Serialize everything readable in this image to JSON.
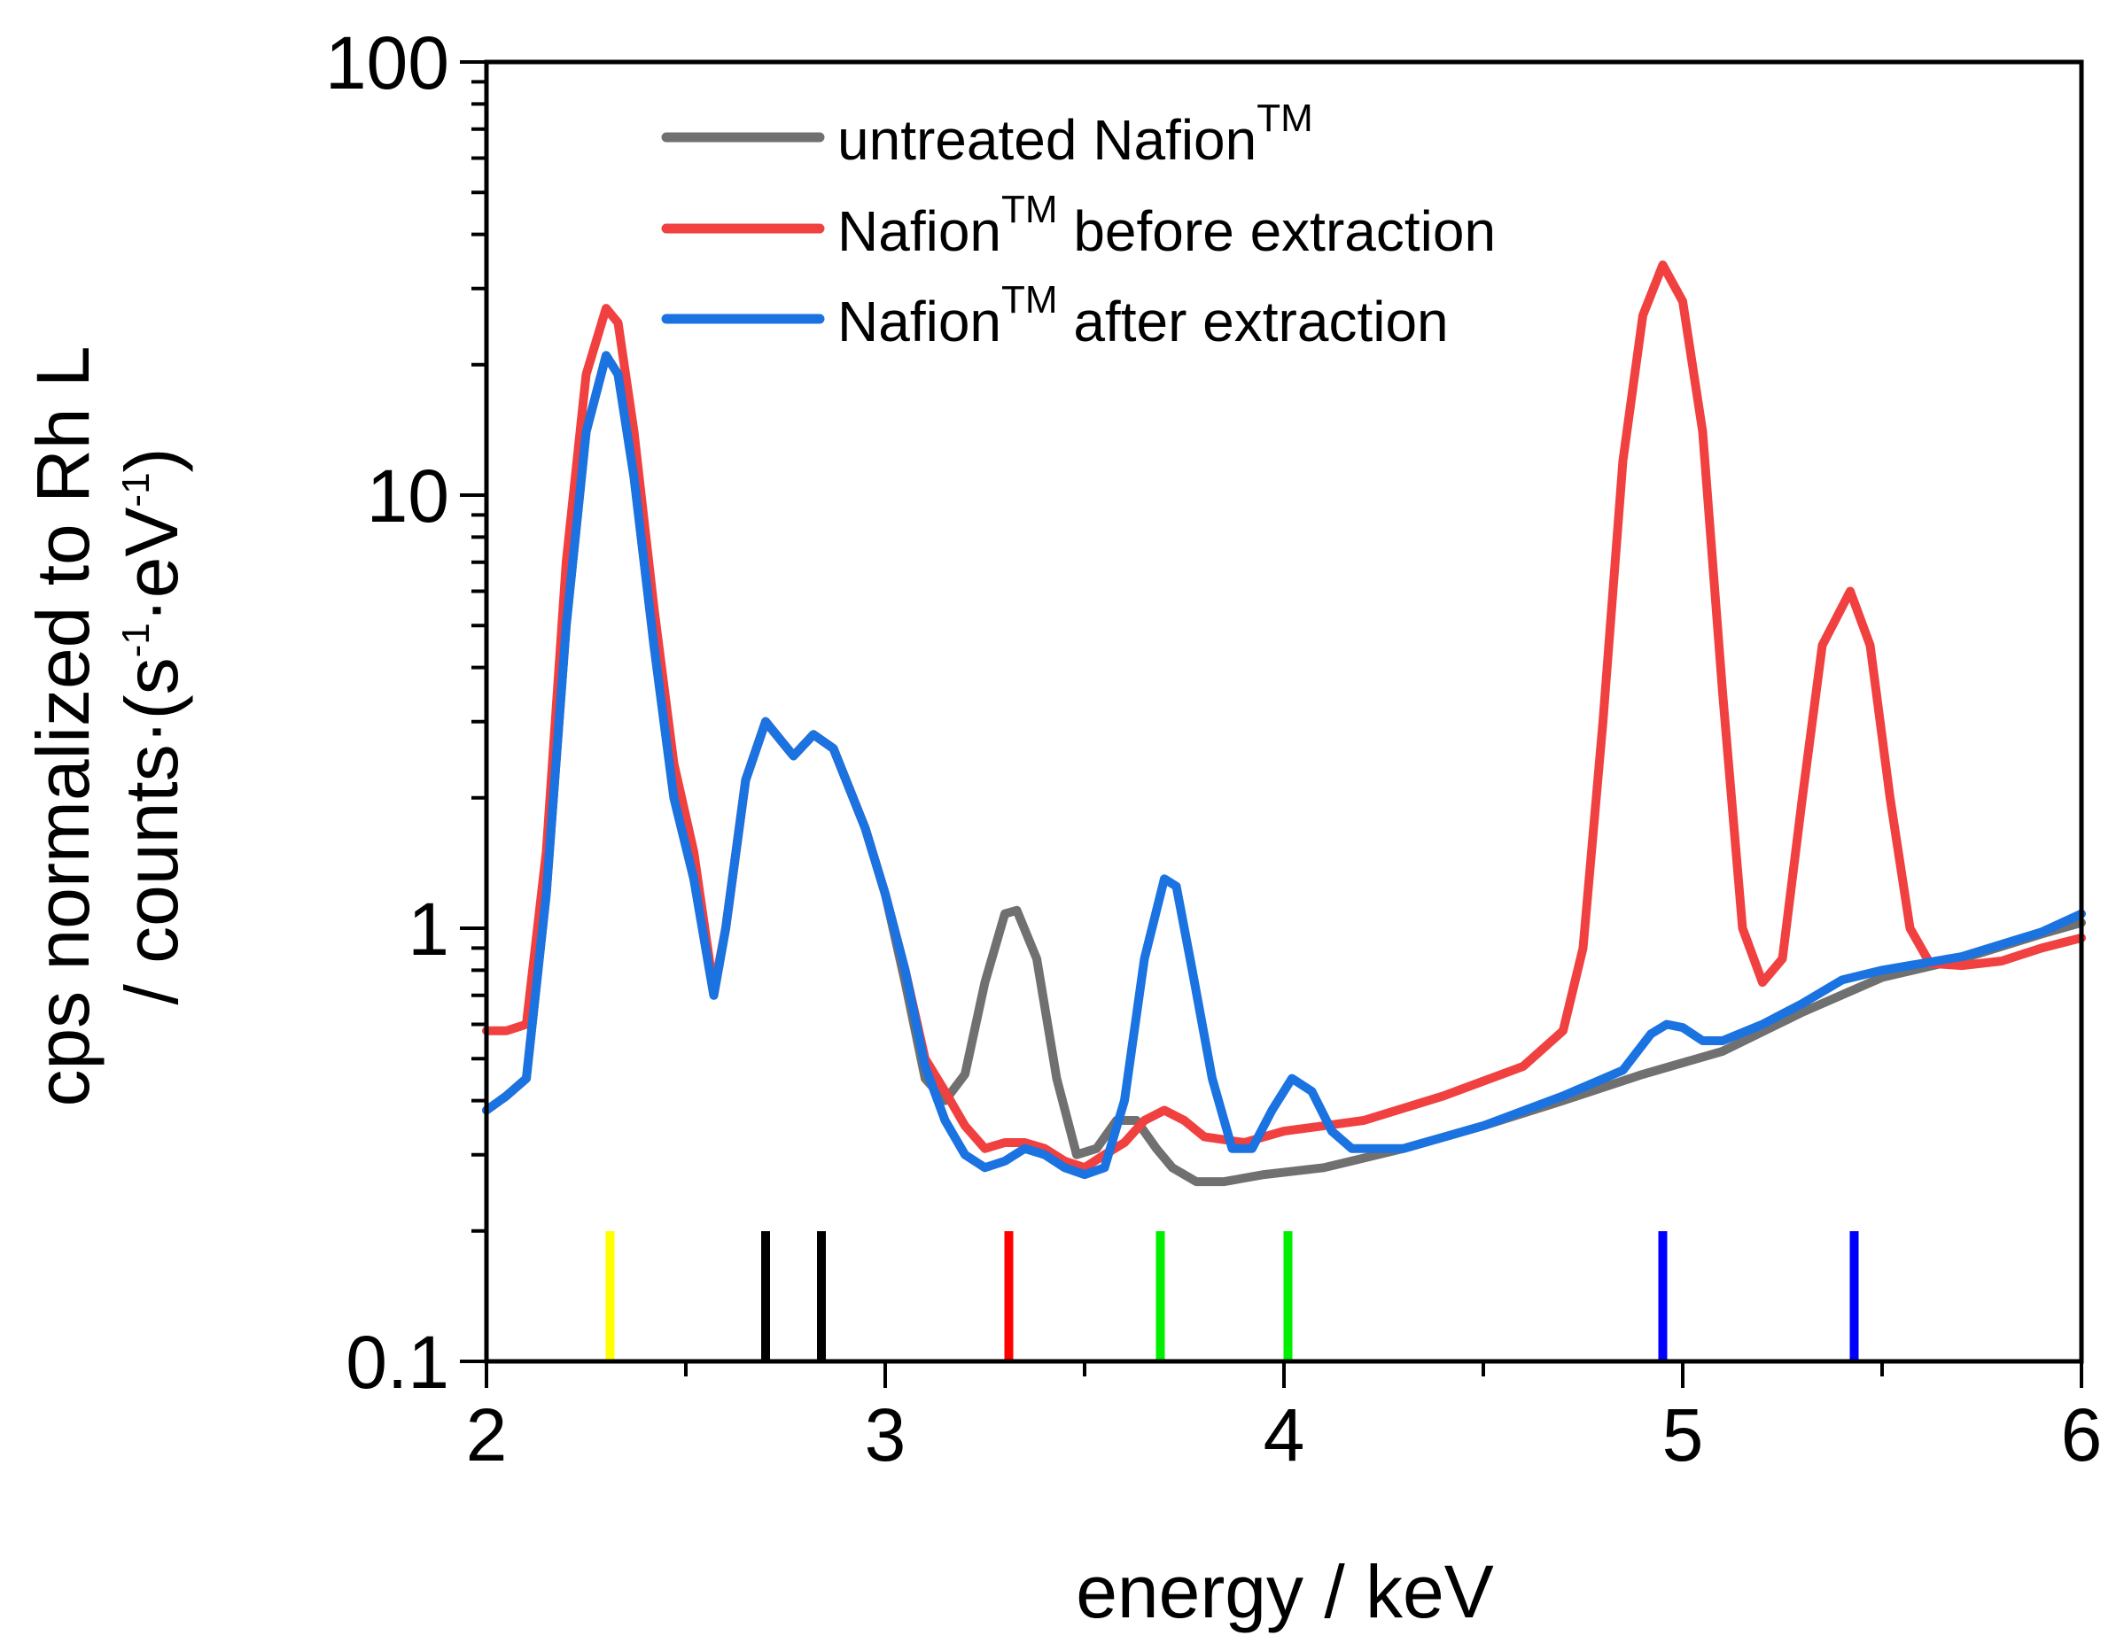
{
  "chart_data": {
    "type": "line",
    "xlabel": "energy / keV",
    "ylabel_line1": "cps normalized to Rh L",
    "ylabel_line2_prefix": "/ counts·(s",
    "ylabel_sup1": "-1",
    "ylabel_mid": "·eV",
    "ylabel_sup2": "-1",
    "ylabel_suffix": ")",
    "xlim": [
      2,
      6
    ],
    "ylim": [
      0.1,
      100
    ],
    "yscale": "log",
    "x_ticks": [
      2,
      3,
      4,
      5,
      6
    ],
    "x_tick_labels": [
      "2",
      "3",
      "4",
      "5",
      "6"
    ],
    "y_ticks": [
      0.1,
      1,
      10,
      100
    ],
    "y_tick_labels": [
      "0.1",
      "1",
      "10",
      "100"
    ],
    "legend_position": "top-center",
    "legend_sup": "TM",
    "series": [
      {
        "name": "untreated Nafion",
        "legend_pre": "untreated Nafion",
        "legend_post": "",
        "color": "#707070",
        "points": [
          [
            2.0,
            0.38
          ],
          [
            2.05,
            0.41
          ],
          [
            2.1,
            0.45
          ],
          [
            2.15,
            1.2
          ],
          [
            2.2,
            5.0
          ],
          [
            2.25,
            14
          ],
          [
            2.3,
            21
          ],
          [
            2.33,
            19
          ],
          [
            2.37,
            11
          ],
          [
            2.42,
            4.5
          ],
          [
            2.47,
            2.0
          ],
          [
            2.52,
            1.3
          ],
          [
            2.57,
            0.7
          ],
          [
            2.6,
            1.0
          ],
          [
            2.65,
            2.2
          ],
          [
            2.7,
            3.0
          ],
          [
            2.77,
            2.5
          ],
          [
            2.82,
            2.8
          ],
          [
            2.87,
            2.6
          ],
          [
            2.95,
            1.7
          ],
          [
            3.0,
            1.2
          ],
          [
            3.05,
            0.75
          ],
          [
            3.1,
            0.45
          ],
          [
            3.15,
            0.4
          ],
          [
            3.2,
            0.46
          ],
          [
            3.25,
            0.75
          ],
          [
            3.3,
            1.08
          ],
          [
            3.33,
            1.1
          ],
          [
            3.38,
            0.85
          ],
          [
            3.43,
            0.45
          ],
          [
            3.48,
            0.3
          ],
          [
            3.53,
            0.31
          ],
          [
            3.58,
            0.36
          ],
          [
            3.63,
            0.36
          ],
          [
            3.68,
            0.31
          ],
          [
            3.72,
            0.28
          ],
          [
            3.78,
            0.26
          ],
          [
            3.85,
            0.26
          ],
          [
            3.95,
            0.27
          ],
          [
            4.1,
            0.28
          ],
          [
            4.3,
            0.31
          ],
          [
            4.5,
            0.35
          ],
          [
            4.7,
            0.4
          ],
          [
            4.9,
            0.46
          ],
          [
            5.1,
            0.52
          ],
          [
            5.3,
            0.64
          ],
          [
            5.5,
            0.77
          ],
          [
            5.7,
            0.85
          ],
          [
            5.9,
            0.97
          ],
          [
            6.0,
            1.03
          ]
        ]
      },
      {
        "name": "Nafion before extraction",
        "legend_pre": "Nafion",
        "legend_post": " before extraction",
        "color": "#f04040",
        "points": [
          [
            2.0,
            0.58
          ],
          [
            2.05,
            0.58
          ],
          [
            2.1,
            0.6
          ],
          [
            2.15,
            1.5
          ],
          [
            2.2,
            7.0
          ],
          [
            2.25,
            19
          ],
          [
            2.3,
            27
          ],
          [
            2.33,
            25
          ],
          [
            2.37,
            14
          ],
          [
            2.42,
            5.5
          ],
          [
            2.47,
            2.4
          ],
          [
            2.52,
            1.5
          ],
          [
            2.57,
            0.72
          ],
          [
            2.6,
            1.0
          ],
          [
            2.65,
            2.2
          ],
          [
            2.7,
            3.0
          ],
          [
            2.77,
            2.5
          ],
          [
            2.82,
            2.8
          ],
          [
            2.87,
            2.6
          ],
          [
            2.95,
            1.7
          ],
          [
            3.0,
            1.2
          ],
          [
            3.05,
            0.8
          ],
          [
            3.1,
            0.5
          ],
          [
            3.15,
            0.42
          ],
          [
            3.2,
            0.35
          ],
          [
            3.25,
            0.31
          ],
          [
            3.3,
            0.32
          ],
          [
            3.35,
            0.32
          ],
          [
            3.4,
            0.31
          ],
          [
            3.45,
            0.29
          ],
          [
            3.5,
            0.28
          ],
          [
            3.55,
            0.3
          ],
          [
            3.6,
            0.32
          ],
          [
            3.65,
            0.36
          ],
          [
            3.7,
            0.38
          ],
          [
            3.75,
            0.36
          ],
          [
            3.8,
            0.33
          ],
          [
            3.9,
            0.32
          ],
          [
            4.0,
            0.34
          ],
          [
            4.2,
            0.36
          ],
          [
            4.4,
            0.41
          ],
          [
            4.6,
            0.48
          ],
          [
            4.7,
            0.58
          ],
          [
            4.75,
            0.9
          ],
          [
            4.8,
            3.0
          ],
          [
            4.85,
            12
          ],
          [
            4.9,
            26
          ],
          [
            4.95,
            34
          ],
          [
            5.0,
            28
          ],
          [
            5.05,
            14
          ],
          [
            5.1,
            3.5
          ],
          [
            5.15,
            1.0
          ],
          [
            5.2,
            0.75
          ],
          [
            5.25,
            0.85
          ],
          [
            5.3,
            2.0
          ],
          [
            5.35,
            4.5
          ],
          [
            5.42,
            6.0
          ],
          [
            5.47,
            4.5
          ],
          [
            5.52,
            2.0
          ],
          [
            5.57,
            1.0
          ],
          [
            5.62,
            0.83
          ],
          [
            5.7,
            0.82
          ],
          [
            5.8,
            0.84
          ],
          [
            5.9,
            0.9
          ],
          [
            6.0,
            0.95
          ]
        ]
      },
      {
        "name": "Nafion after extraction",
        "legend_pre": "Nafion",
        "legend_post": " after extraction",
        "color": "#1a73e0",
        "points": [
          [
            2.0,
            0.38
          ],
          [
            2.05,
            0.41
          ],
          [
            2.1,
            0.45
          ],
          [
            2.15,
            1.2
          ],
          [
            2.2,
            5.0
          ],
          [
            2.25,
            14
          ],
          [
            2.3,
            21
          ],
          [
            2.33,
            19
          ],
          [
            2.37,
            11
          ],
          [
            2.42,
            4.5
          ],
          [
            2.47,
            2.0
          ],
          [
            2.52,
            1.3
          ],
          [
            2.57,
            0.7
          ],
          [
            2.6,
            1.0
          ],
          [
            2.65,
            2.2
          ],
          [
            2.7,
            3.0
          ],
          [
            2.77,
            2.5
          ],
          [
            2.82,
            2.8
          ],
          [
            2.87,
            2.6
          ],
          [
            2.95,
            1.7
          ],
          [
            3.0,
            1.2
          ],
          [
            3.05,
            0.8
          ],
          [
            3.1,
            0.48
          ],
          [
            3.15,
            0.36
          ],
          [
            3.2,
            0.3
          ],
          [
            3.25,
            0.28
          ],
          [
            3.3,
            0.29
          ],
          [
            3.35,
            0.31
          ],
          [
            3.4,
            0.3
          ],
          [
            3.45,
            0.28
          ],
          [
            3.5,
            0.27
          ],
          [
            3.55,
            0.28
          ],
          [
            3.6,
            0.4
          ],
          [
            3.65,
            0.85
          ],
          [
            3.7,
            1.3
          ],
          [
            3.73,
            1.25
          ],
          [
            3.77,
            0.8
          ],
          [
            3.82,
            0.45
          ],
          [
            3.87,
            0.31
          ],
          [
            3.92,
            0.31
          ],
          [
            3.97,
            0.38
          ],
          [
            4.02,
            0.45
          ],
          [
            4.07,
            0.42
          ],
          [
            4.12,
            0.34
          ],
          [
            4.17,
            0.31
          ],
          [
            4.3,
            0.31
          ],
          [
            4.5,
            0.35
          ],
          [
            4.7,
            0.41
          ],
          [
            4.85,
            0.47
          ],
          [
            4.92,
            0.57
          ],
          [
            4.96,
            0.6
          ],
          [
            5.0,
            0.59
          ],
          [
            5.05,
            0.55
          ],
          [
            5.1,
            0.55
          ],
          [
            5.2,
            0.6
          ],
          [
            5.3,
            0.67
          ],
          [
            5.4,
            0.76
          ],
          [
            5.5,
            0.8
          ],
          [
            5.7,
            0.86
          ],
          [
            5.9,
            0.98
          ],
          [
            6.0,
            1.08
          ]
        ]
      }
    ],
    "marker_lines": [
      {
        "x": 2.31,
        "color": "#ffff00"
      },
      {
        "x": 2.7,
        "color": "#000000"
      },
      {
        "x": 2.84,
        "color": "#000000"
      },
      {
        "x": 3.31,
        "color": "#ff0000"
      },
      {
        "x": 3.69,
        "color": "#00ee00"
      },
      {
        "x": 4.01,
        "color": "#00ee00"
      },
      {
        "x": 4.95,
        "color": "#0000ff"
      },
      {
        "x": 5.43,
        "color": "#0000ff"
      }
    ]
  }
}
